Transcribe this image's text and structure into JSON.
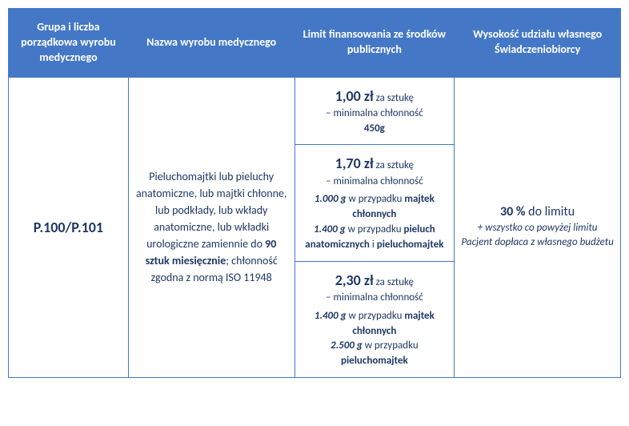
{
  "headers": {
    "col1": "Grupa i liczba porządkowa wyrobu medycznego",
    "col2": "Nazwa wyrobu medycznego",
    "col3": "Limit finansowania ze środków publicznych",
    "col4": "Wysokość udziału własnego Świadczeniobiorcy"
  },
  "code": "P.100/P.101",
  "description": {
    "part1": "Pieluchomajtki lub pieluchy anatomiczne, lub majtki chłonne, lub podkłady, lub wkłady anatomiczne, lub wkładki urologiczne zamiennie do ",
    "bold1": "90 sztuk miesięcznie",
    "part2": "; chłonność zgodna z normą ISO 11948"
  },
  "limits": [
    {
      "price": "1,00 zł",
      "per": " za sztukę",
      "sub": "– minimalna chłonność",
      "specs": [
        {
          "val": "450g"
        }
      ]
    },
    {
      "price": "1,70 zł",
      "per": " za sztukę",
      "sub": "– minimalna chłonność",
      "specs": [
        {
          "val": "1.000 g",
          "txt": " w przypadku ",
          "item": "majtek chłonnych"
        },
        {
          "val": "1.400 g",
          "txt": " w przypadku ",
          "item": "pieluch anatomicznych",
          "join": " i ",
          "item2": "pieluchomajtek"
        }
      ]
    },
    {
      "price": "2,30 zł",
      "per": " za sztukę",
      "sub": "– minimalna chłonność",
      "specs": [
        {
          "val": "1.400 g",
          "txt": " w przypadku ",
          "item": "majtek chłonnych"
        },
        {
          "val": "2.500 g",
          "txt": " w przypadku ",
          "item": "pieluchomajtek"
        }
      ]
    }
  ],
  "share": {
    "main_pct": "30 %",
    "main_txt": " do limitu",
    "note": "+ wszystko co powyżej limitu Pacjent dopłaca z własnego budżetu"
  }
}
